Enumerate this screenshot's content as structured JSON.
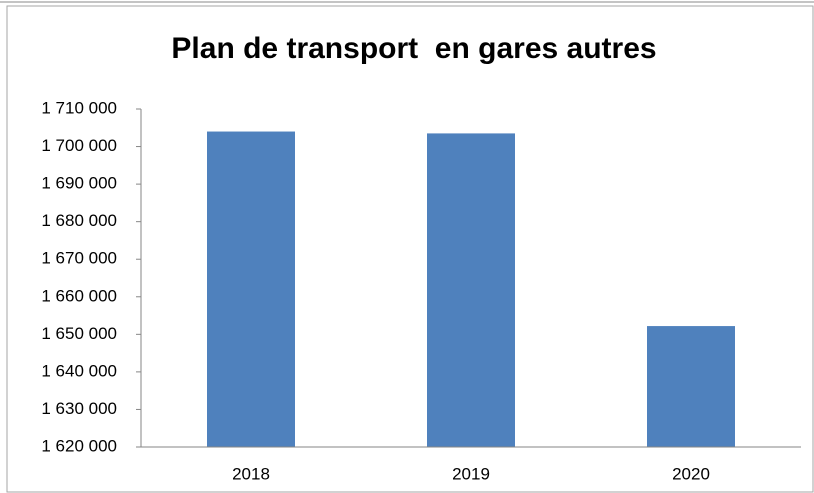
{
  "chart_data": {
    "type": "bar",
    "title": "Plan de transport  en gares autres",
    "categories": [
      "2018",
      "2019",
      "2020"
    ],
    "values": [
      1704000,
      1703500,
      1652200
    ],
    "color": "#4f81bd",
    "ylim": [
      1620000,
      1710000
    ],
    "yticks": [
      {
        "value": 1620000,
        "label": "1 620 000"
      },
      {
        "value": 1630000,
        "label": "1 630 000"
      },
      {
        "value": 1640000,
        "label": "1 640 000"
      },
      {
        "value": 1650000,
        "label": "1 650 000"
      },
      {
        "value": 1660000,
        "label": "1 660 000"
      },
      {
        "value": 1670000,
        "label": "1 670 000"
      },
      {
        "value": 1680000,
        "label": "1 680 000"
      },
      {
        "value": 1690000,
        "label": "1 690 000"
      },
      {
        "value": 1700000,
        "label": "1 700 000"
      },
      {
        "value": 1710000,
        "label": "1 710 000"
      }
    ],
    "grid": false
  }
}
